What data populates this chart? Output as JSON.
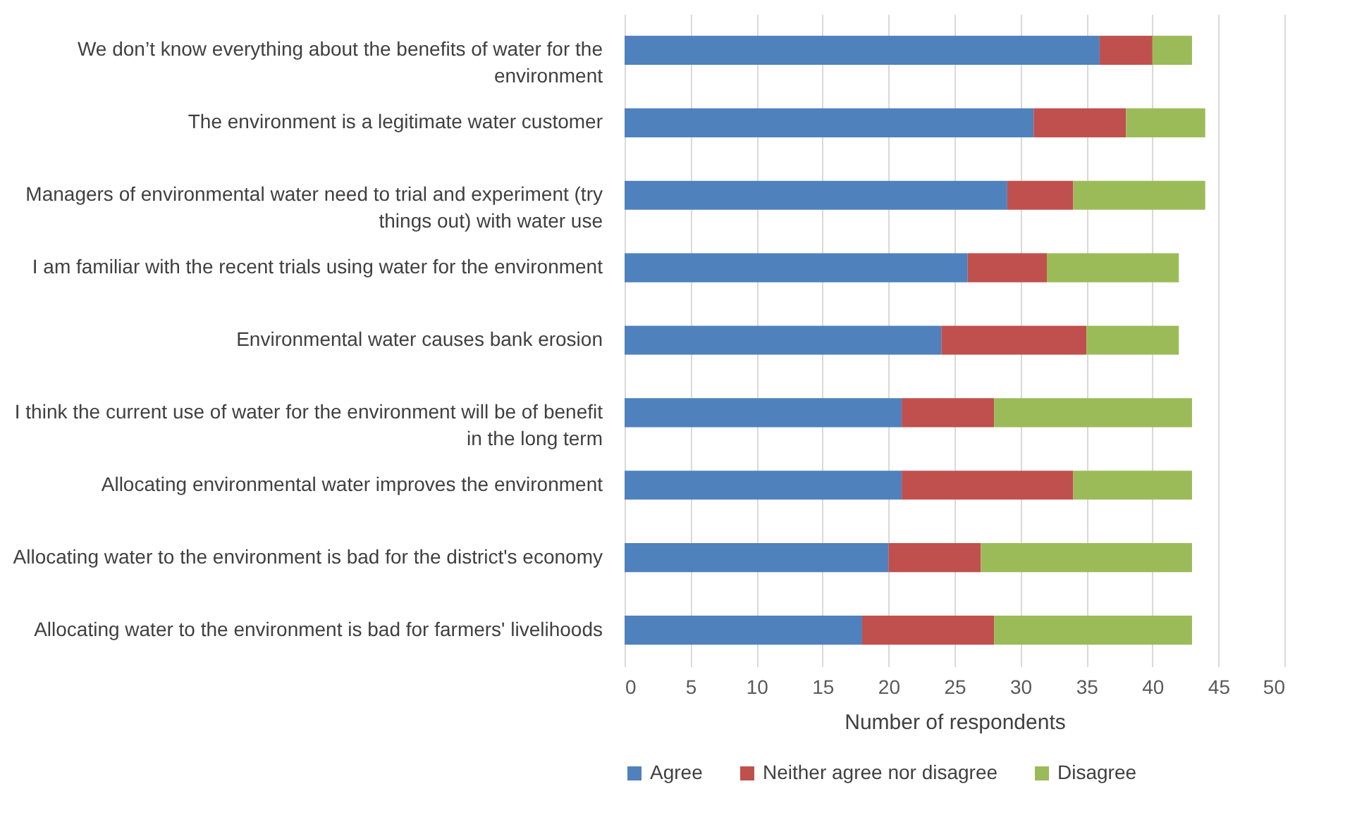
{
  "chart_data": {
    "type": "bar",
    "orientation": "horizontal",
    "stacked": true,
    "xlabel": "Number of respondents",
    "categories": [
      "We don’t know everything about the benefits of water for the environment",
      "The environment is a legitimate water customer",
      "Managers of environmental water need to trial and experiment (try things out) with water use",
      "I am familiar with the recent trials using water for the environment",
      "Environmental water causes bank erosion",
      "I think the current use of water for the environment will be of benefit in the long term",
      "Allocating environmental water improves the environment",
      "Allocating water to the environment is bad for the district's economy",
      "Allocating water to the environment is bad for farmers' livelihoods"
    ],
    "series": [
      {
        "name": "Agree",
        "color": "#4f81bd",
        "values": [
          36,
          31,
          29,
          26,
          24,
          21,
          21,
          20,
          18
        ]
      },
      {
        "name": "Neither agree nor disagree",
        "color": "#c0504d",
        "values": [
          4,
          7,
          5,
          6,
          11,
          7,
          13,
          7,
          10
        ]
      },
      {
        "name": "Disagree",
        "color": "#9bbb59",
        "values": [
          3,
          6,
          10,
          10,
          7,
          15,
          9,
          16,
          15
        ]
      }
    ],
    "xlim": [
      0,
      50
    ],
    "xticks": [
      0,
      5,
      10,
      15,
      20,
      25,
      30,
      35,
      40,
      45,
      50
    ],
    "grid": "x",
    "legend": "bottom"
  }
}
